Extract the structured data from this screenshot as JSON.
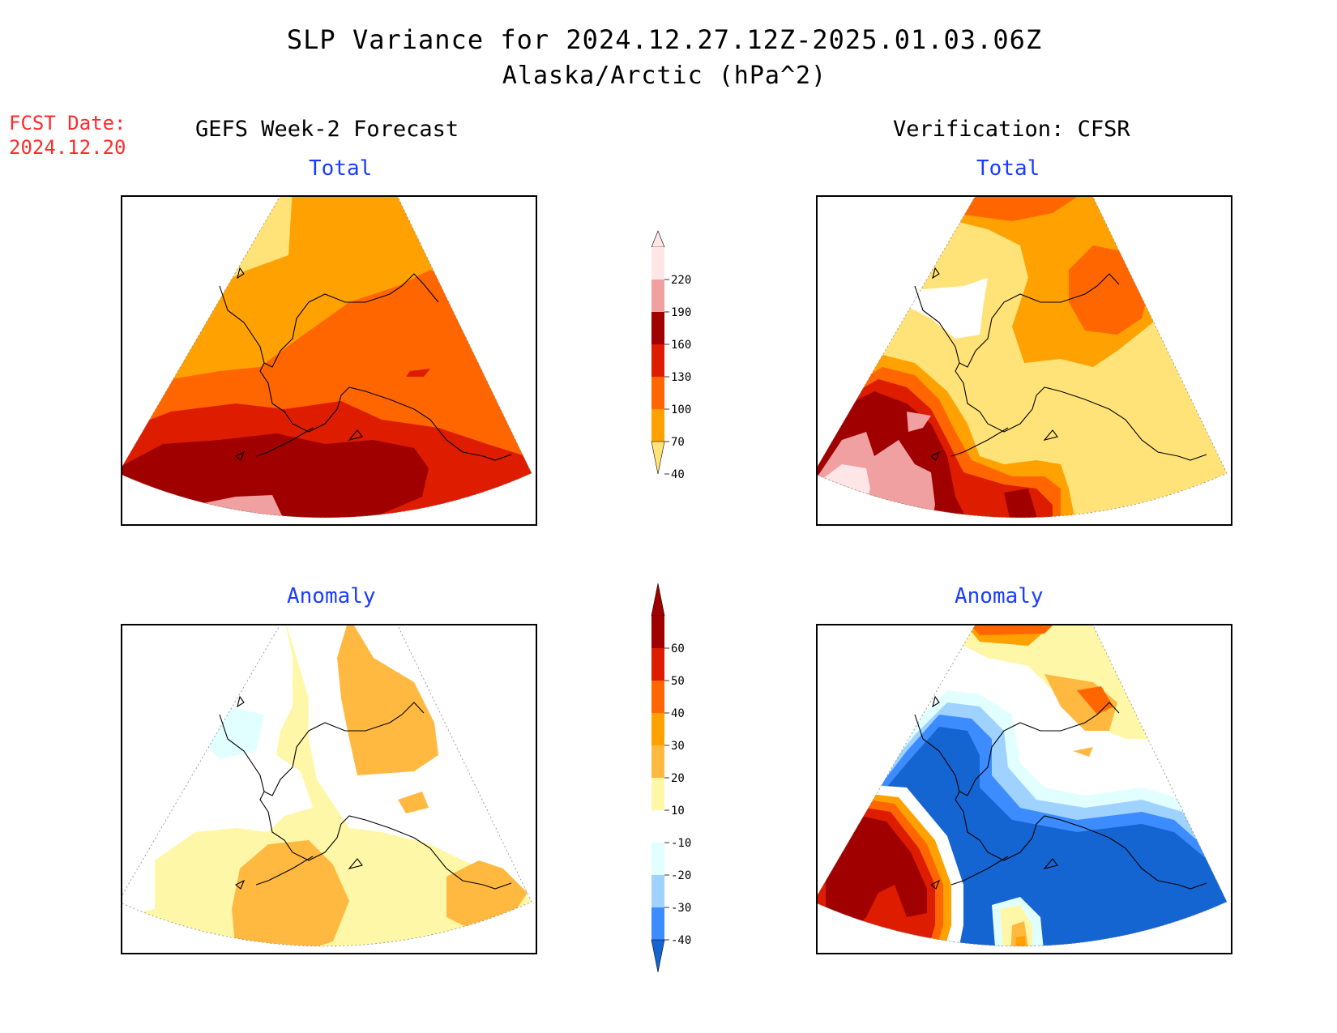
{
  "header": {
    "title": "SLP Variance for 2024.12.27.12Z-2025.01.03.06Z",
    "subtitle": "Alaska/Arctic (hPa^2)",
    "forecast_date_label": "FCST Date:",
    "forecast_date_value": "2024.12.20",
    "left_column_title": "GEFS Week-2 Forecast",
    "right_column_title": "Verification: CFSR"
  },
  "panels": {
    "top_left_title": "Total",
    "top_right_title": "Total",
    "bottom_left_title": "Anomaly",
    "bottom_right_title": "Anomaly"
  },
  "colorbars": {
    "total": {
      "labels": [
        "220",
        "190",
        "160",
        "130",
        "100",
        "70",
        "40"
      ],
      "colors": [
        "#ffe6e6",
        "#f0a0a0",
        "#a00000",
        "#dd1c00",
        "#ff6600",
        "#ffa100",
        "#ffe379"
      ]
    },
    "anomaly": {
      "labels": [
        "60",
        "50",
        "40",
        "30",
        "20",
        "10",
        "-10",
        "-20",
        "-30",
        "-40"
      ],
      "colors": [
        "#a00000",
        "#dd1c00",
        "#ff6600",
        "#ffa100",
        "#ffb940",
        "#fff7a8",
        "#ffffff",
        "#e0fffe",
        "#a0d2ff",
        "#3c8cff",
        "#1464d2"
      ]
    }
  }
}
